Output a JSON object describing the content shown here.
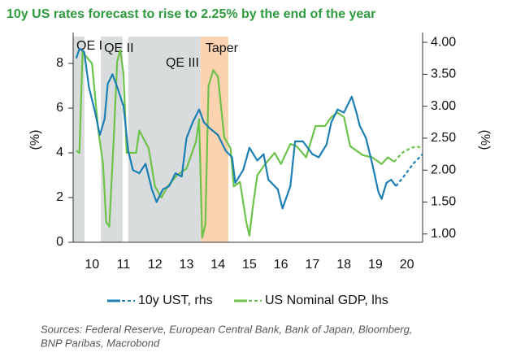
{
  "chart_data": {
    "type": "line",
    "title": "10y US rates forecast to rise to 2.25% by the end of the year",
    "ylabel": "(%)",
    "y2label": "(%)",
    "xlim": [
      2009.9,
      2021.0
    ],
    "xticks": [
      {
        "value": 2010.5,
        "label": "10"
      },
      {
        "value": 2011.5,
        "label": "11"
      },
      {
        "value": 2012.5,
        "label": "12"
      },
      {
        "value": 2013.5,
        "label": "13"
      },
      {
        "value": 2014.5,
        "label": "14"
      },
      {
        "value": 2015.5,
        "label": "15"
      },
      {
        "value": 2016.5,
        "label": "16"
      },
      {
        "value": 2017.5,
        "label": "17"
      },
      {
        "value": 2018.5,
        "label": "18"
      },
      {
        "value": 2019.5,
        "label": "19"
      },
      {
        "value": 2020.5,
        "label": "20"
      }
    ],
    "ylim": [
      0,
      9.2
    ],
    "yticks": [
      0,
      2,
      4,
      6,
      8
    ],
    "y2lim": [
      0.87,
      4.09
    ],
    "y2ticks": [
      {
        "value": 1,
        "label": "1.00"
      },
      {
        "value": 1.5,
        "label": "1.50"
      },
      {
        "value": 2,
        "label": "2.00"
      },
      {
        "value": 2.5,
        "label": "2.50"
      },
      {
        "value": 3,
        "label": "3.00"
      },
      {
        "value": 3.5,
        "label": "3.50"
      },
      {
        "value": 4,
        "label": "4.00"
      }
    ],
    "shaded_regions": [
      {
        "label": "QE I",
        "start": 2009.9,
        "end": 2010.26,
        "color": "#d9dcdd"
      },
      {
        "label": "QE II",
        "start": 2010.78,
        "end": 2011.47,
        "color": "#d9dcdd"
      },
      {
        "label": "QE III",
        "start": 2011.65,
        "end": 2013.95,
        "color": "#d9dcdd"
      },
      {
        "label": "Taper",
        "start": 2013.95,
        "end": 2014.83,
        "color": "#fbd3b0"
      }
    ],
    "series": [
      {
        "name": "10y UST, rhs",
        "color": "#1b7fb3",
        "axis": "y2",
        "x": [
          2010.0,
          2010.1,
          2010.25,
          2010.4,
          2010.6,
          2010.75,
          2010.9,
          2011.0,
          2011.15,
          2011.3,
          2011.5,
          2011.65,
          2011.8,
          2012.0,
          2012.2,
          2012.4,
          2012.55,
          2012.75,
          2012.95,
          2013.15,
          2013.35,
          2013.5,
          2013.7,
          2013.9,
          2014.05,
          2014.25,
          2014.5,
          2014.75,
          2014.95,
          2015.05,
          2015.3,
          2015.5,
          2015.75,
          2015.95,
          2016.1,
          2016.4,
          2016.55,
          2016.8,
          2016.95,
          2017.2,
          2017.5,
          2017.7,
          2017.95,
          2018.1,
          2018.3,
          2018.5,
          2018.75,
          2018.9,
          2019.0,
          2019.2,
          2019.4,
          2019.6,
          2019.7,
          2019.85,
          2020.0,
          2020.15
        ],
        "values": [
          3.75,
          3.9,
          3.85,
          3.3,
          2.9,
          2.55,
          2.8,
          3.35,
          3.5,
          3.3,
          3.0,
          2.3,
          2.0,
          1.95,
          2.1,
          1.7,
          1.5,
          1.7,
          1.75,
          1.95,
          1.9,
          2.5,
          2.75,
          2.95,
          2.75,
          2.65,
          2.55,
          2.3,
          2.2,
          1.8,
          2.0,
          2.35,
          2.15,
          2.25,
          1.85,
          1.7,
          1.4,
          1.75,
          2.45,
          2.45,
          2.25,
          2.2,
          2.4,
          2.75,
          2.95,
          2.9,
          3.15,
          2.9,
          2.7,
          2.5,
          2.1,
          1.65,
          1.55,
          1.8,
          1.85,
          1.75
        ],
        "forecast_x": [
          2020.15,
          2020.4,
          2020.7,
          2021.0
        ],
        "forecast_values": [
          1.75,
          1.9,
          2.1,
          2.25
        ]
      },
      {
        "name": "US Nominal GDP, lhs",
        "color": "#6cc24a",
        "axis": "y",
        "x": [
          2010.0,
          2010.1,
          2010.2,
          2010.5,
          2010.7,
          2010.85,
          2010.95,
          2011.05,
          2011.2,
          2011.3,
          2011.4,
          2011.5,
          2011.6,
          2011.9,
          2012.0,
          2012.3,
          2012.5,
          2012.7,
          2012.9,
          2013.2,
          2013.5,
          2013.8,
          2013.9,
          2014.0,
          2014.1,
          2014.2,
          2014.35,
          2014.5,
          2014.7,
          2014.9,
          2015.0,
          2015.2,
          2015.4,
          2015.5,
          2015.6,
          2015.75,
          2016.0,
          2016.3,
          2016.5,
          2016.8,
          2017.0,
          2017.3,
          2017.6,
          2017.9,
          2018.1,
          2018.3,
          2018.5,
          2018.7,
          2018.9,
          2019.1,
          2019.4,
          2019.7,
          2019.9,
          2020.1
        ],
        "values": [
          4.1,
          4.0,
          8.5,
          8.0,
          5.0,
          3.5,
          0.9,
          0.7,
          5.0,
          8.1,
          8.6,
          7.5,
          4.0,
          4.0,
          5.0,
          4.2,
          2.5,
          2.0,
          2.5,
          3.0,
          3.3,
          4.5,
          5.5,
          0.2,
          0.8,
          7.0,
          7.7,
          7.4,
          4.7,
          4.2,
          2.5,
          2.7,
          0.9,
          0.3,
          1.5,
          3.0,
          3.5,
          4.0,
          3.5,
          4.4,
          4.3,
          3.8,
          5.2,
          5.2,
          5.6,
          5.8,
          5.6,
          4.3,
          4.1,
          3.9,
          3.8,
          3.5,
          3.8,
          3.6
        ],
        "forecast_x": [
          2020.1,
          2020.35,
          2020.6,
          2020.8,
          2021.0
        ],
        "forecast_values": [
          3.6,
          4.0,
          4.2,
          4.3,
          4.2
        ]
      }
    ],
    "source": [
      "Sources: Federal Reserve, European Central Bank, Bank of Japan, Bloomberg,",
      "BNP Paribas, Macrobond"
    ]
  }
}
